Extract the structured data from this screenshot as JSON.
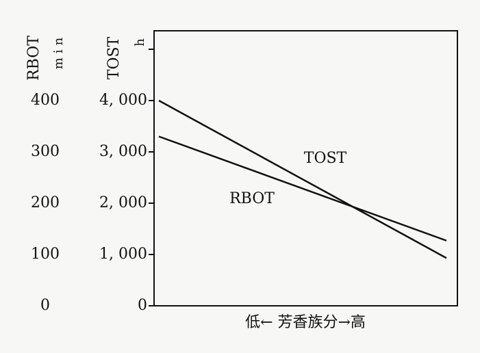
{
  "chart_data": {
    "type": "line",
    "xlabel": "低← 芳香族分→高",
    "ylabel": "TOST",
    "yunit": "h",
    "y2label": "RBOT",
    "y2unit": "min",
    "categories": [
      null,
      null
    ],
    "ylim": [
      0,
      5360
    ],
    "yticks": [
      {
        "value": 0,
        "label": "0"
      },
      {
        "value": 1000,
        "label": "1, 000"
      },
      {
        "value": 2000,
        "label": "2, 000"
      },
      {
        "value": 3000,
        "label": "3, 000"
      },
      {
        "value": 4000,
        "label": "4, 000"
      },
      {
        "value": 5000,
        "label": null
      }
    ],
    "y2lim": [
      0,
      536
    ],
    "y2ticks": [
      0,
      100,
      200,
      300,
      400
    ],
    "series": [
      {
        "name": "TOST",
        "color": "#111111",
        "values": [
          4000,
          930
        ]
      },
      {
        "name": "RBOT",
        "color": "#111111",
        "axis": "y2",
        "values": [
          330,
          127
        ]
      }
    ]
  }
}
